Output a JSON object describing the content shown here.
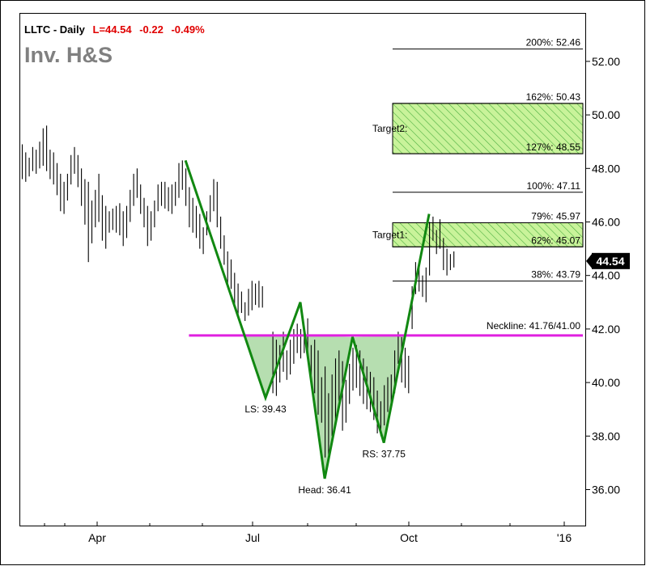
{
  "header": {
    "symbol_label": "LLTC - Daily",
    "last_label": "L=44.54",
    "change_label": "-0.22",
    "change_pct_label": "-0.49%",
    "pattern_title": "Inv. H&S"
  },
  "colors": {
    "down_text": "#e00000",
    "title_gray": "#808080",
    "price_bar": "#000000",
    "pattern_line": "#118811",
    "pattern_fill": "#a9d8a2",
    "neckline": "#e020e0",
    "target_fill": "#c9f39a",
    "target_hatch": "#4caf40"
  },
  "chart_data": {
    "type": "ohlc",
    "title": "LLTC - Daily",
    "last": 44.54,
    "y_axis": {
      "ylim": [
        34.6,
        53.0
      ],
      "ticks": [
        "36.00",
        "38.00",
        "40.00",
        "42.00",
        "44.00",
        "46.00",
        "48.00",
        "50.00",
        "52.00"
      ],
      "position": "right"
    },
    "x_axis": {
      "ticks": [
        "Apr",
        "Jul",
        "Oct",
        "'16"
      ]
    },
    "grid": false,
    "current_price_label": "44.54",
    "bars": [
      {
        "t": 0,
        "h": 48.9,
        "l": 47.6
      },
      {
        "t": 1,
        "h": 48.6,
        "l": 47.5
      },
      {
        "t": 2,
        "h": 48.4,
        "l": 47.7
      },
      {
        "t": 3,
        "h": 48.8,
        "l": 47.9
      },
      {
        "t": 4,
        "h": 48.7,
        "l": 47.8
      },
      {
        "t": 5,
        "h": 49.0,
        "l": 48.0
      },
      {
        "t": 6,
        "h": 49.5,
        "l": 48.1
      },
      {
        "t": 7,
        "h": 49.6,
        "l": 47.9
      },
      {
        "t": 8,
        "h": 48.7,
        "l": 47.6
      },
      {
        "t": 9,
        "h": 48.6,
        "l": 47.4
      },
      {
        "t": 10,
        "h": 48.2,
        "l": 47.0
      },
      {
        "t": 11,
        "h": 47.8,
        "l": 46.4
      },
      {
        "t": 12,
        "h": 47.5,
        "l": 46.3
      },
      {
        "t": 13,
        "h": 47.8,
        "l": 46.8
      },
      {
        "t": 14,
        "h": 48.5,
        "l": 47.4
      },
      {
        "t": 15,
        "h": 48.8,
        "l": 47.8
      },
      {
        "t": 16,
        "h": 48.5,
        "l": 47.3
      },
      {
        "t": 17,
        "h": 48.0,
        "l": 46.6
      },
      {
        "t": 18,
        "h": 47.6,
        "l": 45.9
      },
      {
        "t": 19,
        "h": 47.5,
        "l": 44.5
      },
      {
        "t": 20,
        "h": 46.8,
        "l": 45.2
      },
      {
        "t": 21,
        "h": 47.2,
        "l": 45.8
      },
      {
        "t": 22,
        "h": 47.8,
        "l": 46.0
      },
      {
        "t": 23,
        "h": 47.0,
        "l": 45.3
      },
      {
        "t": 24,
        "h": 46.6,
        "l": 45.0
      },
      {
        "t": 25,
        "h": 46.4,
        "l": 45.6
      },
      {
        "t": 26,
        "h": 46.5,
        "l": 45.7
      },
      {
        "t": 27,
        "h": 46.6,
        "l": 45.6
      },
      {
        "t": 28,
        "h": 46.7,
        "l": 45.5
      },
      {
        "t": 29,
        "h": 46.4,
        "l": 45.1
      },
      {
        "t": 30,
        "h": 46.6,
        "l": 45.4
      },
      {
        "t": 31,
        "h": 47.2,
        "l": 46.0
      },
      {
        "t": 32,
        "h": 47.8,
        "l": 46.6
      },
      {
        "t": 33,
        "h": 48.0,
        "l": 46.9
      },
      {
        "t": 34,
        "h": 47.4,
        "l": 46.3
      },
      {
        "t": 35,
        "h": 46.9,
        "l": 45.8
      },
      {
        "t": 36,
        "h": 46.6,
        "l": 45.1
      },
      {
        "t": 37,
        "h": 46.4,
        "l": 45.3
      },
      {
        "t": 38,
        "h": 46.8,
        "l": 45.8
      },
      {
        "t": 39,
        "h": 47.4,
        "l": 46.4
      },
      {
        "t": 40,
        "h": 47.5,
        "l": 46.6
      },
      {
        "t": 41,
        "h": 47.5,
        "l": 46.5
      },
      {
        "t": 42,
        "h": 47.3,
        "l": 46.4
      },
      {
        "t": 43,
        "h": 47.4,
        "l": 46.3
      },
      {
        "t": 44,
        "h": 47.5,
        "l": 46.6
      },
      {
        "t": 45,
        "h": 48.2,
        "l": 46.9
      },
      {
        "t": 46,
        "h": 48.3,
        "l": 47.2
      },
      {
        "t": 47,
        "h": 48.0,
        "l": 46.6
      },
      {
        "t": 48,
        "h": 47.3,
        "l": 45.8
      },
      {
        "t": 49,
        "h": 46.9,
        "l": 45.6
      },
      {
        "t": 50,
        "h": 46.6,
        "l": 45.4
      },
      {
        "t": 51,
        "h": 46.3,
        "l": 45.0
      },
      {
        "t": 52,
        "h": 45.8,
        "l": 44.8
      },
      {
        "t": 53,
        "h": 46.4,
        "l": 45.5
      },
      {
        "t": 54,
        "h": 47.0,
        "l": 46.0
      },
      {
        "t": 55,
        "h": 47.6,
        "l": 46.4
      },
      {
        "t": 56,
        "h": 47.5,
        "l": 45.8
      },
      {
        "t": 57,
        "h": 46.2,
        "l": 45.0
      },
      {
        "t": 58,
        "h": 45.5,
        "l": 44.4
      },
      {
        "t": 59,
        "h": 44.9,
        "l": 43.7
      },
      {
        "t": 60,
        "h": 44.6,
        "l": 43.5
      },
      {
        "t": 61,
        "h": 44.1,
        "l": 42.9
      },
      {
        "t": 62,
        "h": 43.7,
        "l": 42.4
      },
      {
        "t": 63,
        "h": 43.4,
        "l": 42.6
      },
      {
        "t": 64,
        "h": 43.0,
        "l": 42.3
      },
      {
        "t": 65,
        "h": 43.5,
        "l": 42.5
      },
      {
        "t": 66,
        "h": 43.8,
        "l": 42.7
      },
      {
        "t": 67,
        "h": 43.7,
        "l": 42.9
      },
      {
        "t": 68,
        "h": 43.8,
        "l": 42.8
      },
      {
        "t": 69,
        "h": 43.6,
        "l": 42.8
      },
      {
        "t": 72,
        "h": 41.9,
        "l": 39.6
      },
      {
        "t": 73,
        "h": 41.6,
        "l": 39.5
      },
      {
        "t": 74,
        "h": 41.4,
        "l": 40.0
      },
      {
        "t": 75,
        "h": 41.9,
        "l": 40.4
      },
      {
        "t": 76,
        "h": 41.2,
        "l": 40.1
      },
      {
        "t": 77,
        "h": 41.6,
        "l": 40.3
      },
      {
        "t": 78,
        "h": 42.0,
        "l": 40.7
      },
      {
        "t": 79,
        "h": 42.2,
        "l": 41.1
      },
      {
        "t": 80,
        "h": 42.0,
        "l": 40.9
      },
      {
        "t": 81,
        "h": 42.1,
        "l": 41.1
      },
      {
        "t": 82,
        "h": 42.4,
        "l": 40.8
      },
      {
        "t": 83,
        "h": 41.4,
        "l": 40.1
      },
      {
        "t": 84,
        "h": 41.6,
        "l": 39.6
      },
      {
        "t": 85,
        "h": 41.2,
        "l": 38.8
      },
      {
        "t": 86,
        "h": 40.2,
        "l": 38.5
      },
      {
        "t": 87,
        "h": 40.6,
        "l": 37.2
      },
      {
        "t": 88,
        "h": 39.6,
        "l": 37.3
      },
      {
        "t": 89,
        "h": 40.3,
        "l": 38.0
      },
      {
        "t": 90,
        "h": 40.9,
        "l": 38.6
      },
      {
        "t": 91,
        "h": 41.2,
        "l": 39.3
      },
      {
        "t": 92,
        "h": 40.8,
        "l": 38.2
      },
      {
        "t": 93,
        "h": 40.1,
        "l": 38.5
      },
      {
        "t": 94,
        "h": 40.7,
        "l": 39.2
      },
      {
        "t": 95,
        "h": 41.3,
        "l": 39.7
      },
      {
        "t": 96,
        "h": 41.4,
        "l": 39.8
      },
      {
        "t": 97,
        "h": 41.2,
        "l": 39.5
      },
      {
        "t": 98,
        "h": 40.9,
        "l": 39.2
      },
      {
        "t": 99,
        "h": 40.6,
        "l": 39.0
      },
      {
        "t": 100,
        "h": 40.4,
        "l": 38.9
      },
      {
        "t": 101,
        "h": 40.2,
        "l": 38.6
      },
      {
        "t": 102,
        "h": 39.7,
        "l": 38.1
      },
      {
        "t": 103,
        "h": 39.3,
        "l": 38.0
      },
      {
        "t": 104,
        "h": 39.9,
        "l": 38.4
      },
      {
        "t": 105,
        "h": 40.2,
        "l": 38.9
      },
      {
        "t": 106,
        "h": 40.3,
        "l": 39.0
      },
      {
        "t": 107,
        "h": 41.2,
        "l": 39.6
      },
      {
        "t": 108,
        "h": 41.9,
        "l": 40.7
      },
      {
        "t": 109,
        "h": 41.7,
        "l": 40.0
      },
      {
        "t": 110,
        "h": 41.3,
        "l": 39.8
      },
      {
        "t": 111,
        "h": 41.0,
        "l": 39.6
      },
      {
        "t": 112,
        "h": 43.6,
        "l": 42.0
      },
      {
        "t": 113,
        "h": 44.5,
        "l": 43.3
      },
      {
        "t": 114,
        "h": 44.3,
        "l": 43.4
      },
      {
        "t": 115,
        "h": 44.0,
        "l": 43.2
      },
      {
        "t": 116,
        "h": 44.3,
        "l": 43.0
      },
      {
        "t": 117,
        "h": 46.0,
        "l": 44.0
      },
      {
        "t": 118,
        "h": 46.2,
        "l": 45.3
      },
      {
        "t": 119,
        "h": 45.7,
        "l": 44.8
      },
      {
        "t": 120,
        "h": 46.1,
        "l": 45.0
      },
      {
        "t": 121,
        "h": 45.4,
        "l": 44.2
      },
      {
        "t": 122,
        "h": 45.0,
        "l": 44.0
      },
      {
        "t": 123,
        "h": 44.8,
        "l": 44.2
      },
      {
        "t": 124,
        "h": 44.9,
        "l": 44.3
      }
    ],
    "pattern": {
      "name": "Inv. H&S",
      "points": [
        {
          "t": 47,
          "y": 48.3
        },
        {
          "t": 70,
          "y": 39.43,
          "label": "LS: 39.43"
        },
        {
          "t": 80,
          "y": 43.0
        },
        {
          "t": 87,
          "y": 36.41,
          "label": "Head: 36.41"
        },
        {
          "t": 95,
          "y": 41.7
        },
        {
          "t": 104,
          "y": 37.75,
          "label": "RS: 37.75"
        },
        {
          "t": 117,
          "y": 46.3
        }
      ]
    },
    "neckline": {
      "t_start": 48,
      "y": 41.76,
      "label": "Neckline: 41.76/41.00"
    },
    "levels": [
      {
        "y": 52.46,
        "label": "200%: 52.46"
      },
      {
        "y": 50.43,
        "label": "162%: 50.43"
      },
      {
        "y": 48.55,
        "label": "127%: 48.55"
      },
      {
        "y": 47.11,
        "label": "100%: 47.11"
      },
      {
        "y": 45.97,
        "label": "79%: 45.97"
      },
      {
        "y": 45.07,
        "label": "62%: 45.07"
      },
      {
        "y": 43.79,
        "label": "38%: 43.79"
      }
    ],
    "target_zones": [
      {
        "label": "Target2:",
        "top": 50.43,
        "bottom": 48.55
      },
      {
        "label": "Target1:",
        "top": 45.97,
        "bottom": 45.07
      }
    ]
  }
}
